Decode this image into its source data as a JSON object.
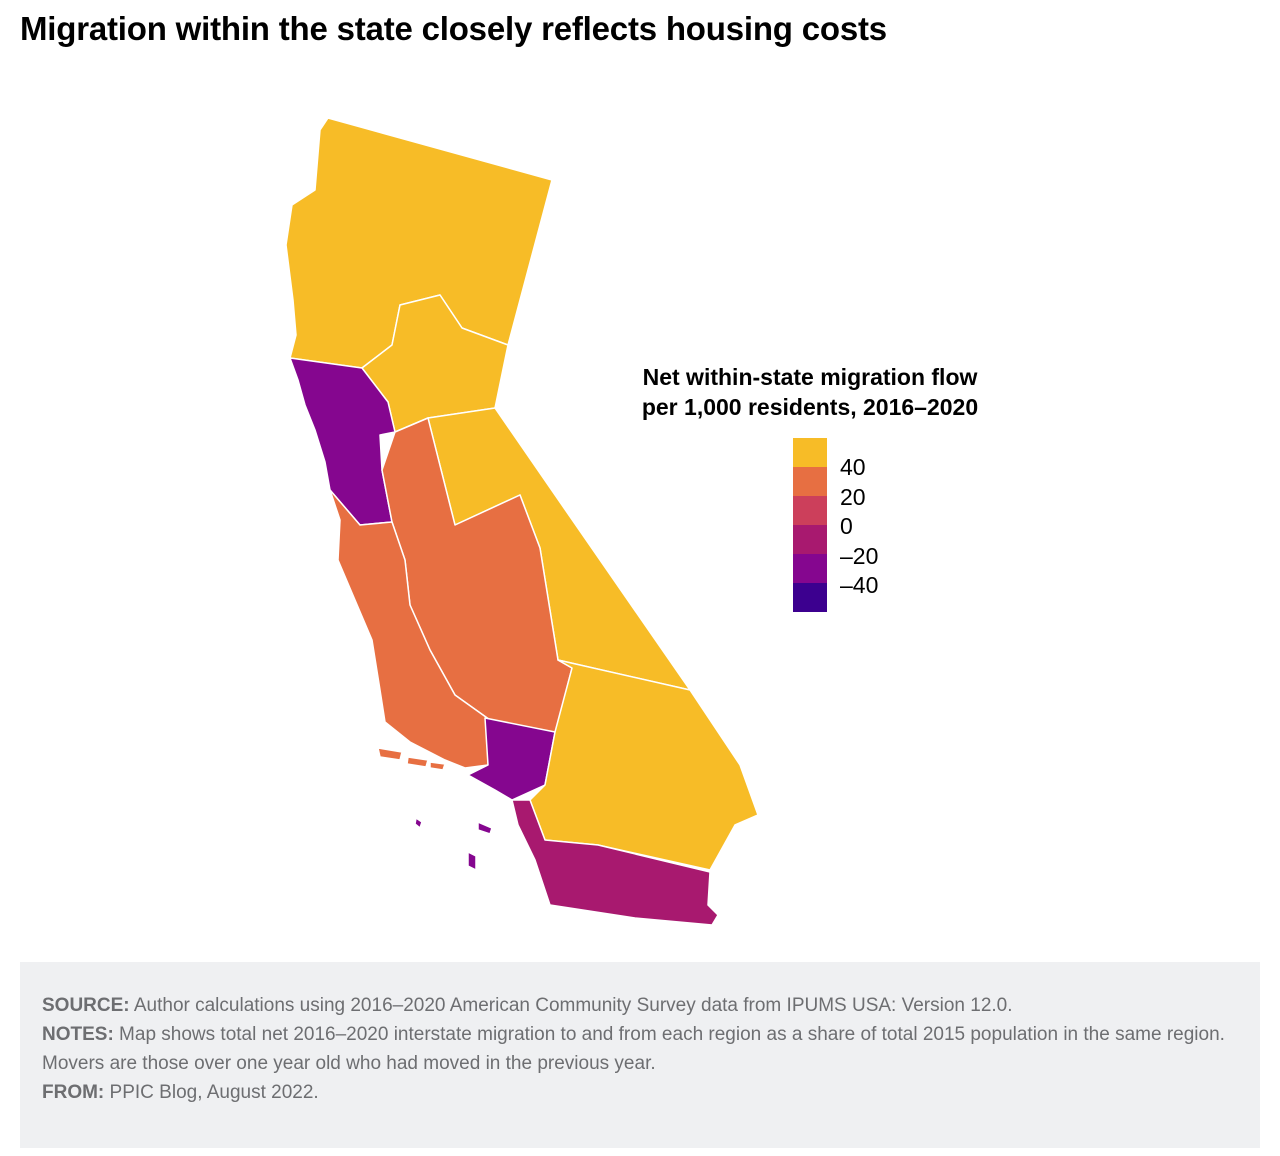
{
  "title": "Migration within the state closely reflects housing costs",
  "map": {
    "regions": [
      {
        "id": "north-state",
        "value_bin": "40",
        "color": "#f7bc27"
      },
      {
        "id": "sacramento-area",
        "value_bin": "40",
        "color": "#f7bc27"
      },
      {
        "id": "sierra",
        "value_bin": "40",
        "color": "#f7bc27"
      },
      {
        "id": "inland-empire",
        "value_bin": "40",
        "color": "#f7bc27"
      },
      {
        "id": "san-joaquin-valley",
        "value_bin": "20",
        "color": "#e76f42"
      },
      {
        "id": "central-coast",
        "value_bin": "20",
        "color": "#e76f42"
      },
      {
        "id": "bay-area",
        "value_bin": "-20",
        "color": "#85068f"
      },
      {
        "id": "los-angeles",
        "value_bin": "-20",
        "color": "#85068f"
      },
      {
        "id": "orange-san-diego",
        "value_bin": "0",
        "color": "#a8196f"
      }
    ]
  },
  "legend": {
    "title_line1": "Net within-state migration flow",
    "title_line2": "per 1,000 residents, 2016–2020",
    "colors": [
      "#f7bc27",
      "#e76f42",
      "#cc3f5b",
      "#a8196f",
      "#85068f",
      "#3c008f"
    ],
    "ticks": [
      "40",
      "20",
      "0",
      "–20",
      "–40"
    ]
  },
  "footer": {
    "source_label": "SOURCE:",
    "source_text": " Author calculations using 2016–2020 American Community Survey data from IPUMS USA: Version 12.0.",
    "notes_label": "NOTES:",
    "notes_text": " Map shows total net 2016–2020 interstate migration to and from each region as a share of total 2015 population in the same region. Movers are those over one year old who had moved in the previous year.",
    "from_label": "FROM:",
    "from_text": " PPIC Blog, August 2022."
  }
}
